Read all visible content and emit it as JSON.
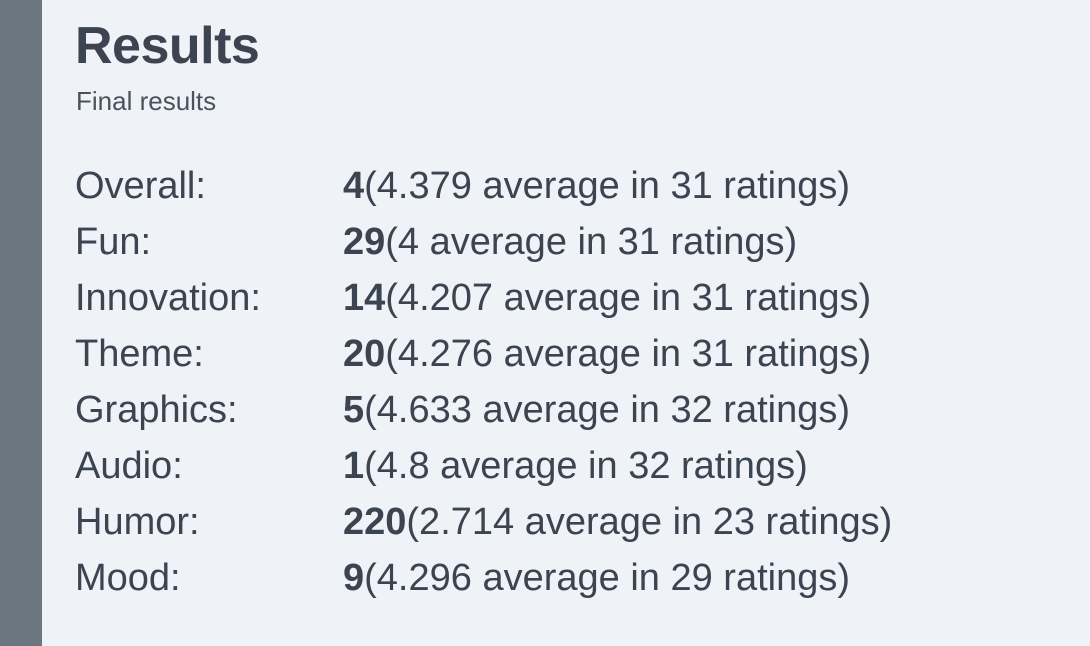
{
  "header": {
    "title": "Results",
    "subtitle": "Final results"
  },
  "results": [
    {
      "category": "Overall:",
      "rank": "4",
      "detail": " (4.379 average in 31 ratings)"
    },
    {
      "category": "Fun:",
      "rank": "29",
      "detail": " (4 average in 31 ratings)"
    },
    {
      "category": "Innovation:",
      "rank": "14",
      "detail": " (4.207 average in 31 ratings)"
    },
    {
      "category": "Theme:",
      "rank": "20",
      "detail": " (4.276 average in 31 ratings)"
    },
    {
      "category": "Graphics:",
      "rank": "5",
      "detail": " (4.633 average in 32 ratings)"
    },
    {
      "category": "Audio:",
      "rank": "1",
      "detail": " (4.8 average in 32 ratings)"
    },
    {
      "category": "Humor:",
      "rank": "220",
      "detail": " (2.714 average in 23 ratings)"
    },
    {
      "category": "Mood:",
      "rank": "9",
      "detail": " (4.296 average in 29 ratings)"
    }
  ],
  "colors": {
    "background": "#eff2f7",
    "sidebar": "#6b7681",
    "text": "#3b4450"
  }
}
